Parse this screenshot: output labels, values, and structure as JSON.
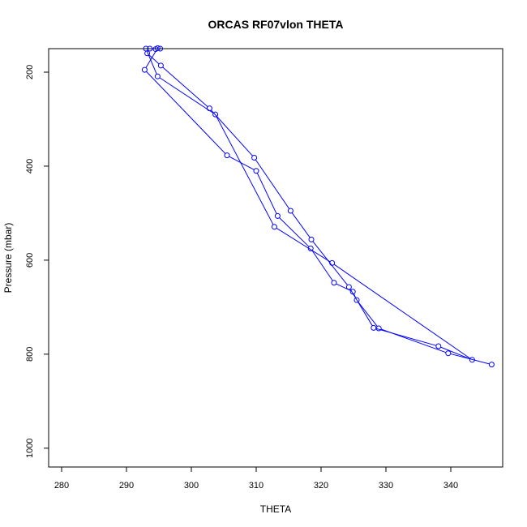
{
  "chart_data": {
    "type": "line",
    "title": "ORCAS RF07vlon THETA",
    "xlabel": "THETA",
    "ylabel": "Pressure (mbar)",
    "xlim": [
      278,
      348
    ],
    "ylim": [
      1040,
      150
    ],
    "y_reversed": true,
    "grid": false,
    "legend": "none",
    "x_ticks": [
      280,
      290,
      300,
      310,
      320,
      330,
      340
    ],
    "y_ticks": [
      200,
      400,
      600,
      800,
      1000
    ],
    "series": [
      {
        "color": "#0000ff",
        "marker": "open-circle",
        "points": [
          [
            346.3,
            822
          ],
          [
            339.6,
            798
          ],
          [
            328.9,
            745
          ],
          [
            325.5,
            685
          ],
          [
            324.9,
            667
          ],
          [
            322.0,
            648
          ],
          [
            318.4,
            575
          ],
          [
            313.3,
            506
          ],
          [
            310.0,
            410
          ],
          [
            305.5,
            377
          ],
          [
            292.8,
            195
          ],
          [
            294.8,
            149
          ],
          [
            295.2,
            150
          ],
          [
            294.5,
            151
          ],
          [
            293.6,
            150
          ],
          [
            293.2,
            160
          ],
          [
            295.3,
            186
          ],
          [
            302.8,
            277
          ],
          [
            309.7,
            382
          ],
          [
            315.3,
            495
          ],
          [
            318.5,
            556
          ],
          [
            324.3,
            657
          ],
          [
            328.1,
            744
          ],
          [
            338.1,
            783
          ],
          [
            343.3,
            812
          ],
          [
            321.7,
            606
          ],
          [
            312.8,
            529
          ],
          [
            303.7,
            290
          ],
          [
            294.8,
            209
          ],
          [
            293.0,
            150
          ]
        ]
      }
    ]
  }
}
